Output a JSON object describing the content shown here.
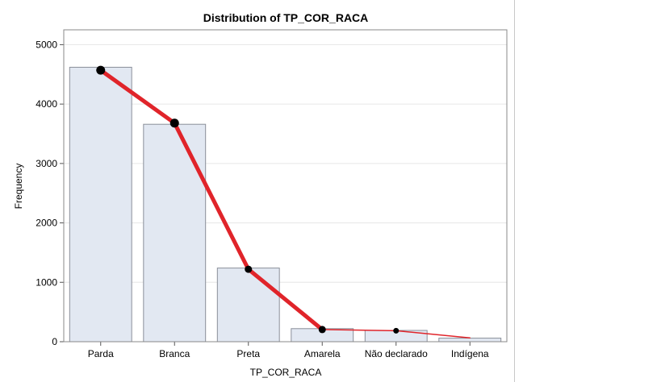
{
  "chart_data": {
    "type": "bar",
    "title": "Distribution of TP_COR_RACA",
    "xlabel": "TP_COR_RACA",
    "ylabel": "Frequency",
    "categories": [
      "Parda",
      "Branca",
      "Preta",
      "Amarela",
      "Não declarado",
      "Indígena"
    ],
    "series": [
      {
        "values": [
          4620,
          3660,
          1240,
          220,
          190,
          60
        ]
      }
    ],
    "overlay_line": {
      "values": [
        4570,
        3680,
        1220,
        205,
        185,
        65
      ],
      "color": "#e0242a"
    },
    "ylim": [
      0,
      5250
    ],
    "yticks": [
      0,
      1000,
      2000,
      3000,
      4000,
      5000
    ],
    "grid": true,
    "bar_fill": "#e2e8f2",
    "bar_stroke": "#8a8f99"
  }
}
